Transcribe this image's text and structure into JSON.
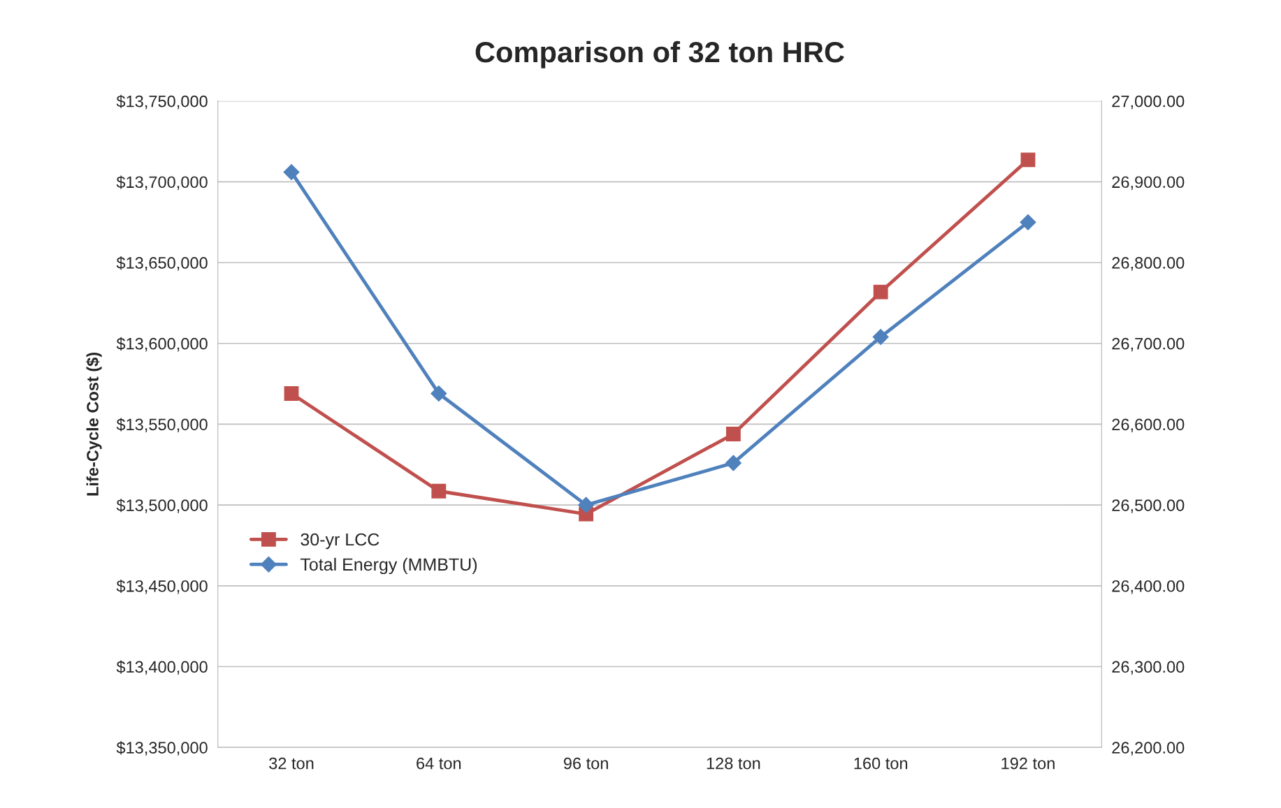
{
  "chart_data": {
    "type": "line",
    "title": "Comparison of 32 ton HRC",
    "ylabel": "Life-Cycle Cost ($)",
    "categories": [
      "32 ton",
      "64 ton",
      "96 ton",
      "128 ton",
      "160 ton",
      "192 ton"
    ],
    "series": [
      {
        "name": "30-yr LCC",
        "color": "#c0504d",
        "marker": "square",
        "values": [
          13569000,
          13508600,
          13494400,
          13543900,
          13631800,
          13713600
        ]
      },
      {
        "name": "Total Energy (MMBTU)",
        "color": "#4f81bd",
        "marker": "diamond",
        "axis": "y2",
        "values": [
          26912,
          26638,
          26500,
          26552,
          26708,
          26850
        ]
      }
    ],
    "ylim": [
      13350000,
      13750000
    ],
    "yticks": [
      {
        "value": 13350000,
        "label": "$13,350,000"
      },
      {
        "value": 13400000,
        "label": "$13,400,000"
      },
      {
        "value": 13450000,
        "label": "$13,450,000"
      },
      {
        "value": 13500000,
        "label": "$13,500,000"
      },
      {
        "value": 13550000,
        "label": "$13,550,000"
      },
      {
        "value": 13600000,
        "label": "$13,600,000"
      },
      {
        "value": 13650000,
        "label": "$13,650,000"
      },
      {
        "value": 13700000,
        "label": "$13,700,000"
      },
      {
        "value": 13750000,
        "label": "$13,750,000"
      }
    ],
    "y2lim": [
      26200,
      27000
    ],
    "y2ticks": [
      {
        "value": 26200,
        "label": "26,200.00"
      },
      {
        "value": 26300,
        "label": "26,300.00"
      },
      {
        "value": 26400,
        "label": "26,400.00"
      },
      {
        "value": 26500,
        "label": "26,500.00"
      },
      {
        "value": 26600,
        "label": "26,600.00"
      },
      {
        "value": 26700,
        "label": "26,700.00"
      },
      {
        "value": 26800,
        "label": "26,800.00"
      },
      {
        "value": 26900,
        "label": "26,900.00"
      },
      {
        "value": 27000,
        "label": "27,000.00"
      }
    ],
    "grid": "y",
    "legend": "left",
    "line_style": "solid"
  }
}
